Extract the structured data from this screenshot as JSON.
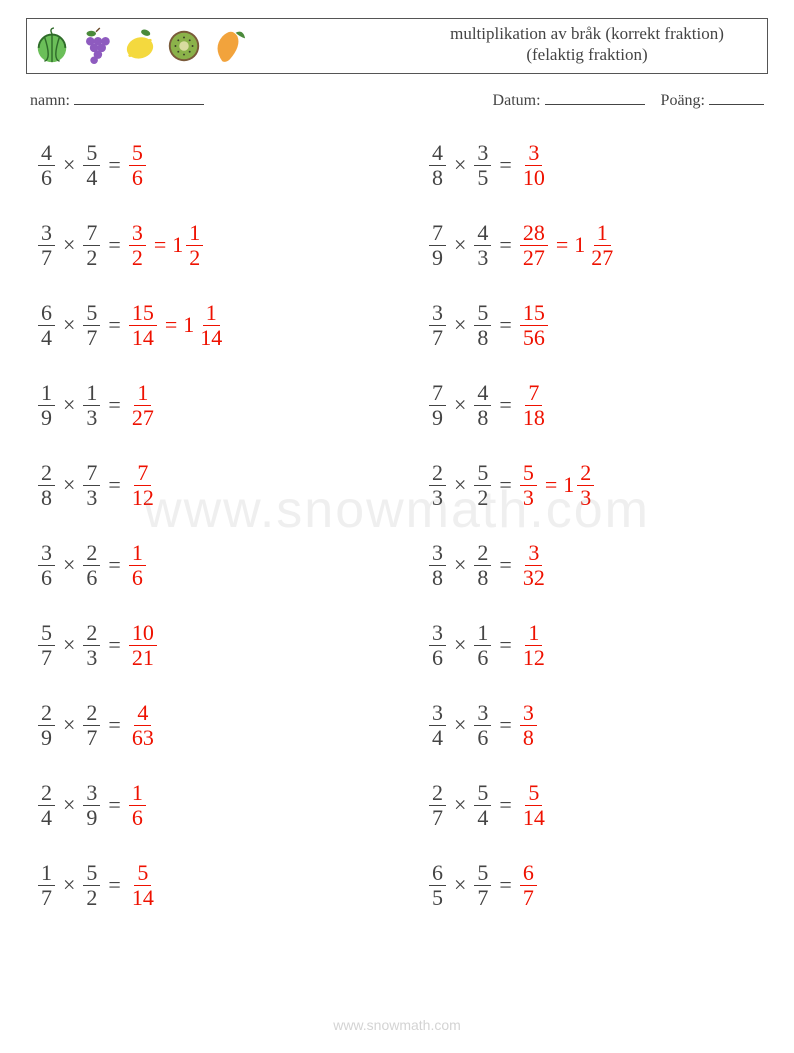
{
  "header": {
    "title_line1": "multiplikation av bråk (korrekt fraktion)",
    "title_line2": "(felaktig fraktion)"
  },
  "meta": {
    "name_label": "namn:",
    "date_label": "Datum:",
    "score_label": "Poäng:"
  },
  "colors": {
    "text": "#444444",
    "answer": "#ee1100",
    "border": "#555555"
  },
  "fruits": [
    {
      "name": "watermelon",
      "color": "#6bbf59",
      "stripe": "#2f6b2a"
    },
    {
      "name": "grapes",
      "color": "#8e5bbf",
      "leaf": "#4a8a3a"
    },
    {
      "name": "lemon",
      "color": "#f4d93e",
      "leaf": "#4a8a3a"
    },
    {
      "name": "kiwi",
      "color": "#8bb24a",
      "ring": "#d8dca0",
      "seed": "#3a3a2a"
    },
    {
      "name": "mango",
      "color": "#f2a33c",
      "leaf": "#4a8a3a"
    }
  ],
  "watermark": "www.snowmath.com",
  "footer": "www.snowmath.com",
  "problems": {
    "left": [
      {
        "a": [
          4,
          6
        ],
        "b": [
          5,
          4
        ],
        "ans": [
          5,
          6
        ]
      },
      {
        "a": [
          3,
          7
        ],
        "b": [
          7,
          2
        ],
        "ans": [
          3,
          2
        ],
        "mixed": [
          1,
          1,
          2
        ]
      },
      {
        "a": [
          6,
          4
        ],
        "b": [
          5,
          7
        ],
        "ans": [
          15,
          14
        ],
        "mixed": [
          1,
          1,
          14
        ]
      },
      {
        "a": [
          1,
          9
        ],
        "b": [
          1,
          3
        ],
        "ans": [
          1,
          27
        ]
      },
      {
        "a": [
          2,
          8
        ],
        "b": [
          7,
          3
        ],
        "ans": [
          7,
          12
        ]
      },
      {
        "a": [
          3,
          6
        ],
        "b": [
          2,
          6
        ],
        "ans": [
          1,
          6
        ]
      },
      {
        "a": [
          5,
          7
        ],
        "b": [
          2,
          3
        ],
        "ans": [
          10,
          21
        ]
      },
      {
        "a": [
          2,
          9
        ],
        "b": [
          2,
          7
        ],
        "ans": [
          4,
          63
        ]
      },
      {
        "a": [
          2,
          4
        ],
        "b": [
          3,
          9
        ],
        "ans": [
          1,
          6
        ]
      },
      {
        "a": [
          1,
          7
        ],
        "b": [
          5,
          2
        ],
        "ans": [
          5,
          14
        ]
      }
    ],
    "right": [
      {
        "a": [
          4,
          8
        ],
        "b": [
          3,
          5
        ],
        "ans": [
          3,
          10
        ]
      },
      {
        "a": [
          7,
          9
        ],
        "b": [
          4,
          3
        ],
        "ans": [
          28,
          27
        ],
        "mixed": [
          1,
          1,
          27
        ]
      },
      {
        "a": [
          3,
          7
        ],
        "b": [
          5,
          8
        ],
        "ans": [
          15,
          56
        ]
      },
      {
        "a": [
          7,
          9
        ],
        "b": [
          4,
          8
        ],
        "ans": [
          7,
          18
        ]
      },
      {
        "a": [
          2,
          3
        ],
        "b": [
          5,
          2
        ],
        "ans": [
          5,
          3
        ],
        "mixed": [
          1,
          2,
          3
        ]
      },
      {
        "a": [
          3,
          8
        ],
        "b": [
          2,
          8
        ],
        "ans": [
          3,
          32
        ]
      },
      {
        "a": [
          3,
          6
        ],
        "b": [
          1,
          6
        ],
        "ans": [
          1,
          12
        ]
      },
      {
        "a": [
          3,
          4
        ],
        "b": [
          3,
          6
        ],
        "ans": [
          3,
          8
        ]
      },
      {
        "a": [
          2,
          7
        ],
        "b": [
          5,
          4
        ],
        "ans": [
          5,
          14
        ]
      },
      {
        "a": [
          6,
          5
        ],
        "b": [
          5,
          7
        ],
        "ans": [
          6,
          7
        ]
      }
    ]
  }
}
